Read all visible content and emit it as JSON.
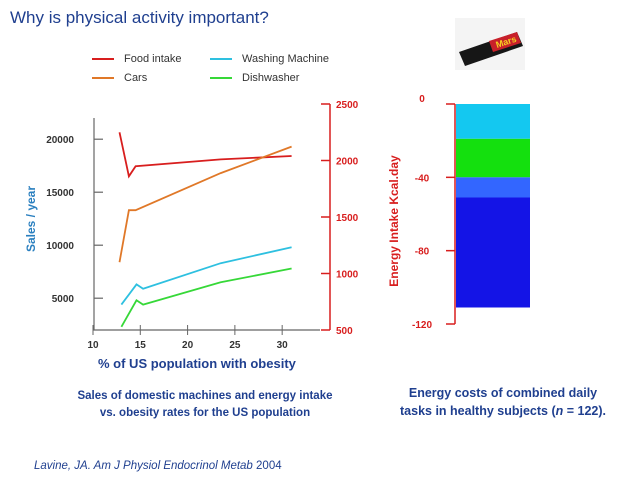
{
  "slide": {
    "title": "Why is physical activity important?",
    "citation_author": "Lavine, JA. ",
    "citation_journal": "Am J Physiol Endocrinol Metab",
    "citation_year": " 2004",
    "caption_left_line1": "Sales of domestic machines and energy intake",
    "caption_left_line2": "vs. obesity rates for the US population",
    "caption_right_line1": "Energy costs of combined daily",
    "caption_right_line2": "tasks in healthy subjects (n = 122)."
  },
  "chart_data": [
    {
      "type": "line",
      "xlabel": "% of US population with obesity",
      "ylabel": "Sales / year",
      "ylabel_right": "Energy Intake Kcal.day",
      "xlim": [
        10,
        34
      ],
      "x_ticks": [
        10,
        15,
        20,
        25,
        30
      ],
      "ylim": [
        2000,
        22000
      ],
      "y_ticks": [
        5000,
        10000,
        15000,
        20000
      ],
      "ylim_right": [
        500,
        2500
      ],
      "y_right_ticks": [
        500,
        1000,
        1500,
        2000,
        2500
      ],
      "grid": false,
      "legend_position": "top",
      "series": [
        {
          "name": "Food intake",
          "axis": "right",
          "color": "#d81e1e",
          "x": [
            12.8,
            13.8,
            14.5,
            23.5,
            31
          ],
          "y": [
            2250,
            1860,
            1950,
            2010,
            2040
          ]
        },
        {
          "name": "Washing Machine",
          "axis": "left",
          "color": "#2ec0e0",
          "x": [
            13,
            14.6,
            15.3,
            23.5,
            31
          ],
          "y": [
            4400,
            6300,
            5900,
            8300,
            9800
          ]
        },
        {
          "name": "Cars",
          "axis": "left",
          "color": "#e07828",
          "x": [
            12.8,
            13.8,
            14.5,
            23.5,
            31
          ],
          "y": [
            8400,
            13300,
            13300,
            16800,
            19300
          ]
        },
        {
          "name": "Dishwasher",
          "axis": "left",
          "color": "#36d838",
          "x": [
            13,
            14.6,
            15.3,
            23.5,
            31
          ],
          "y": [
            2300,
            4800,
            4400,
            6500,
            7800
          ]
        }
      ]
    },
    {
      "type": "bar",
      "ylim": [
        -120,
        0
      ],
      "y_ticks": [
        0,
        -40,
        -80,
        -120
      ],
      "segments": [
        {
          "from": 0,
          "to": -19,
          "color": "#14c8f0"
        },
        {
          "from": -19,
          "to": -40,
          "color": "#14e00e"
        },
        {
          "from": -40,
          "to": -51,
          "color": "#3366ff"
        },
        {
          "from": -51,
          "to": -111,
          "color": "#1414e6"
        }
      ]
    }
  ],
  "image": {
    "name": "chocolate-bar-wrapper",
    "text": "Mars"
  }
}
